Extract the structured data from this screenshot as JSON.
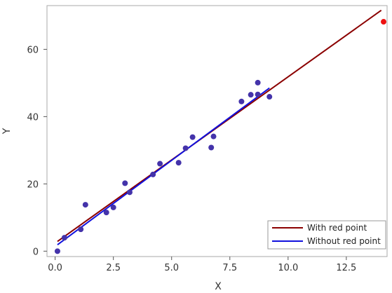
{
  "chart_data": {
    "type": "scatter",
    "title": "",
    "xlabel": "X",
    "ylabel": "Y",
    "xlim": [
      -0.35,
      14.25
    ],
    "ylim": [
      -1.6,
      73
    ],
    "x_ticks": [
      0.0,
      2.5,
      5.0,
      7.5,
      10.0,
      12.5
    ],
    "x_tick_labels": [
      "0.0",
      "2.5",
      "5.0",
      "7.5",
      "10.0",
      "12.5"
    ],
    "y_ticks": [
      0,
      20,
      40,
      60
    ],
    "y_tick_labels": [
      "0",
      "20",
      "40",
      "60"
    ],
    "grid": false,
    "legend_position": "bottom-right",
    "points": {
      "color": "#4433aa",
      "x": [
        0.1,
        0.4,
        1.1,
        1.3,
        2.2,
        2.5,
        3.0,
        3.2,
        4.2,
        4.5,
        5.3,
        5.6,
        5.9,
        6.7,
        6.8,
        8.0,
        8.4,
        8.7,
        8.7,
        9.2
      ],
      "y": [
        0.0,
        4.0,
        6.5,
        13.8,
        11.5,
        13.0,
        20.2,
        17.5,
        22.8,
        26.0,
        26.3,
        30.6,
        33.9,
        30.8,
        34.1,
        44.5,
        46.5,
        50.1,
        46.6,
        45.9
      ]
    },
    "red_point": {
      "x": 14.1,
      "y": 68.2,
      "color": "#ee1111"
    },
    "series": [
      {
        "name": "With red point",
        "color": "#8b0000",
        "x": [
          0.1,
          14.0
        ],
        "y": [
          2.9,
          71.6
        ]
      },
      {
        "name": "Without red point",
        "color": "#1111dd",
        "x": [
          0.1,
          9.2
        ],
        "y": [
          1.9,
          48.5
        ]
      }
    ]
  }
}
